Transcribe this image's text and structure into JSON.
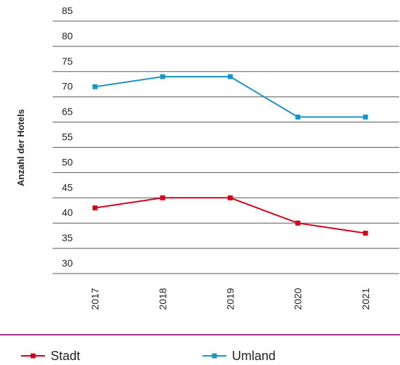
{
  "chart_data": {
    "type": "line",
    "y_label": "Anzahl der Hotels",
    "categories": [
      "2017",
      "2018",
      "2019",
      "2020",
      "2021"
    ],
    "series": [
      {
        "name": "Stadt",
        "color": "#d0021b",
        "values": [
          43,
          45,
          45,
          40,
          38
        ]
      },
      {
        "name": "Umland",
        "color": "#1a94c4",
        "values": [
          72,
          74,
          74,
          66,
          66
        ]
      }
    ],
    "ylim": [
      30,
      85
    ],
    "yticks": [
      85,
      80,
      75,
      70,
      65,
      55,
      50,
      45,
      40,
      35,
      30
    ],
    "grid": true,
    "legend": "bottom"
  }
}
